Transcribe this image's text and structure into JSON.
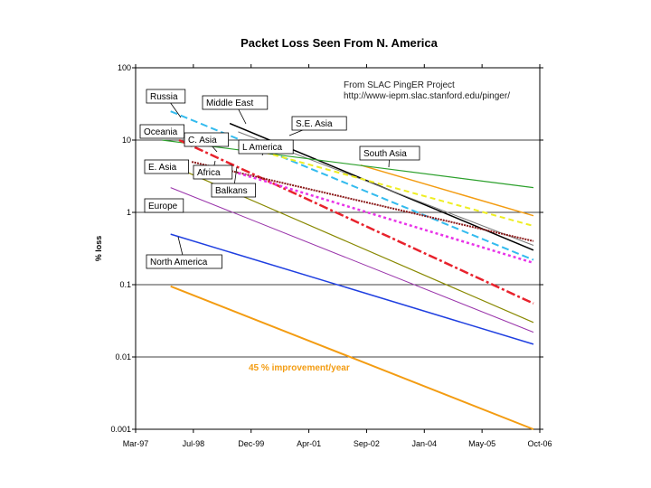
{
  "chart_data": {
    "type": "line",
    "title": "Packet Loss Seen From N. America",
    "xlabel": "",
    "ylabel": "% loss",
    "y_scale": "log",
    "ylim": [
      0.001,
      100
    ],
    "y_ticks": [
      "100",
      "10",
      "1",
      "0.1",
      "0.01",
      "0.001"
    ],
    "x_tick_labels": [
      "Mar-97",
      "Jul-98",
      "Dec-99",
      "Apr-01",
      "Sep-02",
      "Jan-04",
      "May-05",
      "Oct-06"
    ],
    "xlim": [
      1997.17,
      2006.75
    ],
    "credit_lines": [
      "From SLAC PingER Project",
      "http://www-iepm.slac.stanford.edu/pinger/"
    ],
    "annotation": "45 % improvement/year",
    "series": [
      {
        "name": "Russia",
        "color": "#33bbee",
        "dash": "8,4",
        "width": 2,
        "x": [
          1998.0,
          2006.6
        ],
        "y": [
          25,
          0.22
        ]
      },
      {
        "name": "Middle East",
        "color": "#000000",
        "dash": "",
        "width": 1.5,
        "x": [
          1999.4,
          2006.6
        ],
        "y": [
          17,
          0.3
        ]
      },
      {
        "name": "S.E. Asia",
        "color": "#777777",
        "dash": "",
        "width": 1,
        "x": [
          1999.6,
          2006.6
        ],
        "y": [
          13,
          0.35
        ]
      },
      {
        "name": "South Asia",
        "color": "#f39c12",
        "dash": "",
        "width": 1.5,
        "x": [
          2002.5,
          2006.6
        ],
        "y": [
          4.5,
          0.9
        ]
      },
      {
        "name": "Oceania",
        "color": "#2ca02c",
        "dash": "",
        "width": 1.2,
        "x": [
          1997.8,
          2006.6
        ],
        "y": [
          10,
          2.2
        ]
      },
      {
        "name": "L America",
        "color": "#eeee22",
        "dash": "6,4",
        "width": 2,
        "x": [
          1999.6,
          2006.6
        ],
        "y": [
          8.5,
          0.65
        ]
      },
      {
        "name": "C. Asia",
        "color": "#e8222c",
        "dash": "10,3,3,3",
        "width": 2.5,
        "x": [
          1998.2,
          2006.6
        ],
        "y": [
          10,
          0.055
        ]
      },
      {
        "name": "E. Asia",
        "color": "#888800",
        "dash": "",
        "width": 1.2,
        "x": [
          1998.0,
          2006.6
        ],
        "y": [
          4.5,
          0.03
        ]
      },
      {
        "name": "Africa",
        "color": "#8b1a1a",
        "dash": "2,1",
        "width": 2,
        "x": [
          1998.5,
          2006.6
        ],
        "y": [
          5,
          0.4
        ]
      },
      {
        "name": "Balkans",
        "color": "#e833e8",
        "dash": "3,3",
        "width": 2.5,
        "x": [
          1999.6,
          2006.6
        ],
        "y": [
          3.5,
          0.2
        ]
      },
      {
        "name": "Europe",
        "color": "#9933aa",
        "dash": "",
        "width": 1,
        "x": [
          1998.0,
          2006.6
        ],
        "y": [
          2.2,
          0.022
        ]
      },
      {
        "name": "North America",
        "color": "#1f3fe0",
        "dash": "",
        "width": 1.5,
        "x": [
          1998.0,
          2006.6
        ],
        "y": [
          0.5,
          0.015
        ]
      },
      {
        "name": "45 % improvement/year",
        "color": "#f39c12",
        "dash": "",
        "width": 2,
        "x": [
          1998.0,
          2006.6
        ],
        "y": [
          0.095,
          0.001
        ]
      }
    ]
  }
}
